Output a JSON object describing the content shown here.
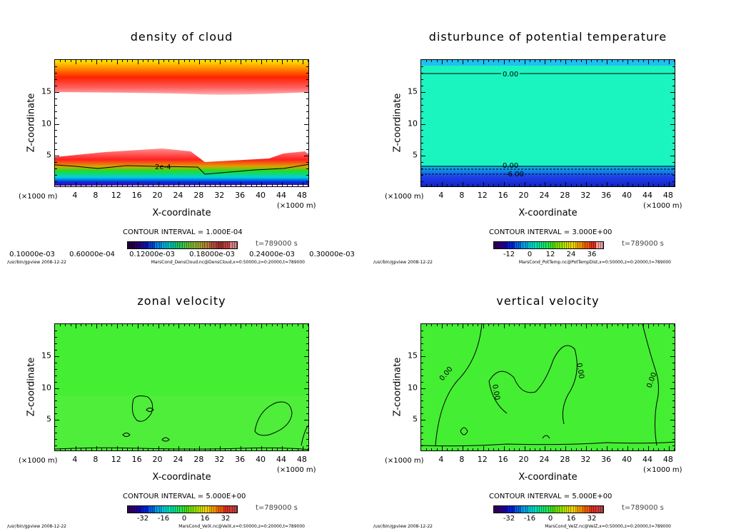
{
  "panels": [
    {
      "title": "density of cloud",
      "xlabel": "X-coordinate",
      "ylabel": "Z-coordinate",
      "x_unit": "(×1000 m)",
      "xticks": [
        "4",
        "8",
        "12",
        "16",
        "20",
        "24",
        "28",
        "32",
        "36",
        "40",
        "44",
        "48"
      ],
      "yticks": [
        "5",
        "10",
        "15"
      ],
      "contour_interval": "CONTOUR INTERVAL = 1.000E-04",
      "time": "t=789000 s",
      "colorbar_labels": [
        "0.10000e-03",
        "0.60000e-04",
        "0.12000e-03",
        "0.18000e-03",
        "0.24000e-03",
        "0.30000e-03"
      ],
      "contour_labels": [
        "2e-4"
      ],
      "footer_left": "/usr/bin/gpview  2008-12-22",
      "footer_right": "MarsCond_DensCloud.nc@DensCloud,x=0:50000,z=0:20000,t=789000"
    },
    {
      "title": "disturbunce of potential temperature",
      "xlabel": "X-coordinate",
      "ylabel": "Z-coordinate",
      "x_unit": "(×1000 m)",
      "xticks": [
        "4",
        "8",
        "12",
        "16",
        "20",
        "24",
        "28",
        "32",
        "36",
        "40",
        "44",
        "48"
      ],
      "yticks": [
        "5",
        "10",
        "15"
      ],
      "contour_interval": "CONTOUR INTERVAL = 3.000E+00",
      "time": "t=789000 s",
      "colorbar_labels": [
        "-12",
        "0",
        "12",
        "24",
        "36"
      ],
      "contour_labels": [
        "0.00",
        "0.00",
        "-6.00"
      ],
      "footer_left": "/usr/bin/gpview  2008-12-22",
      "footer_right": "MarsCond_PotTemp.nc@PotTempDist,x=0:50000,z=0:20000,t=789000"
    },
    {
      "title": "zonal velocity",
      "xlabel": "X-coordinate",
      "ylabel": "Z-coordinate",
      "x_unit": "(×1000 m)",
      "xticks": [
        "4",
        "8",
        "12",
        "16",
        "20",
        "24",
        "28",
        "32",
        "36",
        "40",
        "44",
        "48"
      ],
      "yticks": [
        "5",
        "10",
        "15"
      ],
      "contour_interval": "CONTOUR INTERVAL = 5.000E+00",
      "time": "t=789000 s",
      "colorbar_labels": [
        "-32",
        "-16",
        "0",
        "16",
        "32"
      ],
      "contour_labels": [],
      "footer_left": "/usr/bin/gpview  2008-12-22",
      "footer_right": "MarsCond_VelX.nc@VelX,x=0:50000,z=0:20000,t=789000"
    },
    {
      "title": "vertical velocity",
      "xlabel": "X-coordinate",
      "ylabel": "Z-coordinate",
      "x_unit": "(×1000 m)",
      "xticks": [
        "4",
        "8",
        "12",
        "16",
        "20",
        "24",
        "28",
        "32",
        "36",
        "40",
        "44",
        "48"
      ],
      "yticks": [
        "5",
        "10",
        "15"
      ],
      "contour_interval": "CONTOUR INTERVAL = 5.000E+00",
      "time": "t=789000 s",
      "colorbar_labels": [
        "-32",
        "-16",
        "0",
        "16",
        "32"
      ],
      "contour_labels": [
        "0.00",
        "0.00",
        "0.00",
        "0.00"
      ],
      "footer_left": "/usr/bin/gpview  2008-12-22",
      "footer_right": "MarsCond_VelZ.nc@VelZ,x=0:50000,z=0:20000,t=789000"
    }
  ],
  "chart_data": [
    {
      "type": "heatmap",
      "title": "density of cloud",
      "xlabel": "X-coordinate",
      "ylabel": "Z-coordinate",
      "xlim": [
        0,
        50
      ],
      "ylim": [
        0,
        20
      ],
      "xunit": "×1000 m",
      "contour_interval": 0.0001,
      "time": 789000
    },
    {
      "type": "heatmap",
      "title": "disturbunce of potential temperature",
      "xlabel": "X-coordinate",
      "ylabel": "Z-coordinate",
      "xlim": [
        0,
        50
      ],
      "ylim": [
        0,
        20
      ],
      "contour_interval": 3.0,
      "time": 789000,
      "contours": [
        {
          "level": 0.0,
          "z": 17.7
        },
        {
          "level": 0.0,
          "z": 3.3
        },
        {
          "level": -6.0,
          "z": 2.2
        }
      ]
    },
    {
      "type": "heatmap",
      "title": "zonal velocity",
      "xlabel": "X-coordinate",
      "ylabel": "Z-coordinate",
      "xlim": [
        0,
        50
      ],
      "ylim": [
        0,
        20
      ],
      "contour_interval": 5.0,
      "time": 789000
    },
    {
      "type": "heatmap",
      "title": "vertical velocity",
      "xlabel": "X-coordinate",
      "ylabel": "Z-coordinate",
      "xlim": [
        0,
        50
      ],
      "ylim": [
        0,
        20
      ],
      "contour_interval": 5.0,
      "time": 789000
    }
  ],
  "colors": {
    "cloud_red": "#ff1a1a",
    "cloud_yellow": "#ffee00",
    "ptemp_bg": "#1af5c0",
    "vel_bg": "#44ee33"
  }
}
